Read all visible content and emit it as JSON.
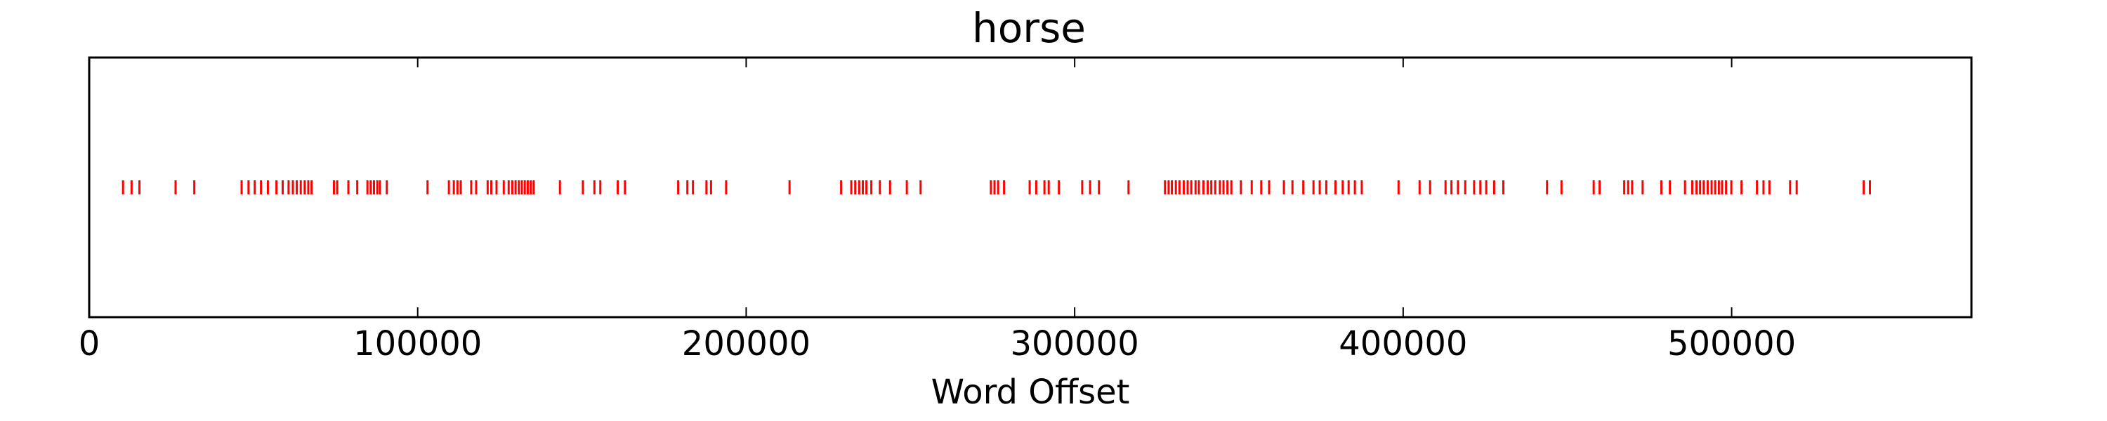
{
  "chart_data": {
    "type": "scatter",
    "title": "horse",
    "xlabel": "Word Offset",
    "ylabel": "",
    "xlim": [
      0,
      573000
    ],
    "x_ticks": [
      0,
      100000,
      200000,
      300000,
      400000,
      500000
    ],
    "x_tick_labels": [
      "0",
      "100000",
      "200000",
      "300000",
      "400000",
      "500000"
    ],
    "y_ticks_visible": false,
    "grid": false,
    "marker": "|",
    "color": "#ff0000",
    "series": [
      {
        "x": [
          10300,
          12900,
          15300,
          26300,
          32000,
          46400,
          48500,
          50400,
          52300,
          54400,
          57000,
          58900,
          60700,
          62000,
          63200,
          64400,
          65600,
          66700,
          67700,
          74500,
          75500,
          78900,
          81600,
          84700,
          85700,
          86700,
          87700,
          88500,
          90600,
          103000,
          109500,
          111000,
          112100,
          113100,
          116300,
          117800,
          121300,
          122400,
          124000,
          126200,
          127700,
          128800,
          129800,
          130800,
          131700,
          132600,
          133500,
          134400,
          135300,
          143300,
          150300,
          153800,
          155600,
          160900,
          163100,
          179300,
          182100,
          183800,
          187900,
          189300,
          193900,
          213200,
          228900,
          232000,
          233200,
          234400,
          235500,
          236600,
          238100,
          240700,
          243800,
          248900,
          253100,
          274500,
          275600,
          276700,
          278500,
          286300,
          288300,
          290800,
          292100,
          295200,
          302300,
          304700,
          307400,
          316400,
          327500,
          328600,
          329600,
          330800,
          331900,
          333200,
          334400,
          335500,
          336800,
          337800,
          339200,
          340500,
          341600,
          342800,
          344200,
          345300,
          346500,
          347700,
          350600,
          353900,
          356800,
          359200,
          363700,
          366300,
          369600,
          372700,
          374600,
          376600,
          379400,
          381600,
          383400,
          385300,
          387400,
          398600,
          405000,
          408200,
          412900,
          414700,
          416700,
          418900,
          421600,
          423500,
          425300,
          427700,
          430500,
          443800,
          448200,
          458000,
          459800,
          467300,
          468500,
          469700,
          472900,
          478600,
          481200,
          485800,
          488000,
          489300,
          490400,
          491500,
          492700,
          493900,
          495000,
          496100,
          497100,
          498300,
          499900,
          503000,
          507700,
          509700,
          511500,
          517800,
          519800,
          540200,
          542100
        ]
      }
    ]
  }
}
